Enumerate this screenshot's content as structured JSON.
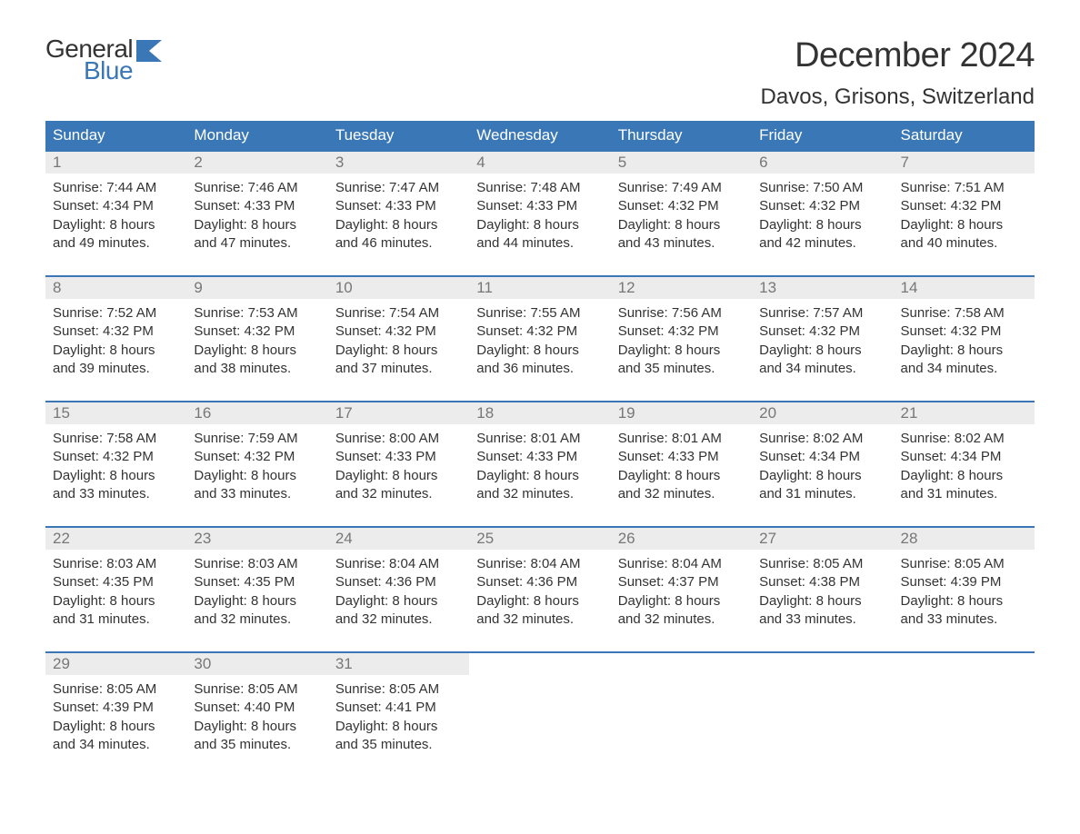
{
  "logo": {
    "word1": "General",
    "word2": "Blue"
  },
  "title": "December 2024",
  "location": "Davos, Grisons, Switzerland",
  "colors": {
    "brand_blue": "#3a77b7",
    "header_bg": "#3a77b7",
    "header_text": "#ffffff",
    "daynum_bg": "#ececec",
    "daynum_text": "#777777",
    "body_text": "#333333",
    "page_bg": "#ffffff"
  },
  "typography": {
    "title_fontsize": 38,
    "location_fontsize": 24,
    "dow_fontsize": 17,
    "daynum_fontsize": 17,
    "detail_fontsize": 15,
    "font_family": "Arial"
  },
  "day_headers": [
    "Sunday",
    "Monday",
    "Tuesday",
    "Wednesday",
    "Thursday",
    "Friday",
    "Saturday"
  ],
  "weeks": [
    [
      {
        "n": "1",
        "sunrise": "Sunrise: 7:44 AM",
        "sunset": "Sunset: 4:34 PM",
        "dl1": "Daylight: 8 hours",
        "dl2": "and 49 minutes."
      },
      {
        "n": "2",
        "sunrise": "Sunrise: 7:46 AM",
        "sunset": "Sunset: 4:33 PM",
        "dl1": "Daylight: 8 hours",
        "dl2": "and 47 minutes."
      },
      {
        "n": "3",
        "sunrise": "Sunrise: 7:47 AM",
        "sunset": "Sunset: 4:33 PM",
        "dl1": "Daylight: 8 hours",
        "dl2": "and 46 minutes."
      },
      {
        "n": "4",
        "sunrise": "Sunrise: 7:48 AM",
        "sunset": "Sunset: 4:33 PM",
        "dl1": "Daylight: 8 hours",
        "dl2": "and 44 minutes."
      },
      {
        "n": "5",
        "sunrise": "Sunrise: 7:49 AM",
        "sunset": "Sunset: 4:32 PM",
        "dl1": "Daylight: 8 hours",
        "dl2": "and 43 minutes."
      },
      {
        "n": "6",
        "sunrise": "Sunrise: 7:50 AM",
        "sunset": "Sunset: 4:32 PM",
        "dl1": "Daylight: 8 hours",
        "dl2": "and 42 minutes."
      },
      {
        "n": "7",
        "sunrise": "Sunrise: 7:51 AM",
        "sunset": "Sunset: 4:32 PM",
        "dl1": "Daylight: 8 hours",
        "dl2": "and 40 minutes."
      }
    ],
    [
      {
        "n": "8",
        "sunrise": "Sunrise: 7:52 AM",
        "sunset": "Sunset: 4:32 PM",
        "dl1": "Daylight: 8 hours",
        "dl2": "and 39 minutes."
      },
      {
        "n": "9",
        "sunrise": "Sunrise: 7:53 AM",
        "sunset": "Sunset: 4:32 PM",
        "dl1": "Daylight: 8 hours",
        "dl2": "and 38 minutes."
      },
      {
        "n": "10",
        "sunrise": "Sunrise: 7:54 AM",
        "sunset": "Sunset: 4:32 PM",
        "dl1": "Daylight: 8 hours",
        "dl2": "and 37 minutes."
      },
      {
        "n": "11",
        "sunrise": "Sunrise: 7:55 AM",
        "sunset": "Sunset: 4:32 PM",
        "dl1": "Daylight: 8 hours",
        "dl2": "and 36 minutes."
      },
      {
        "n": "12",
        "sunrise": "Sunrise: 7:56 AM",
        "sunset": "Sunset: 4:32 PM",
        "dl1": "Daylight: 8 hours",
        "dl2": "and 35 minutes."
      },
      {
        "n": "13",
        "sunrise": "Sunrise: 7:57 AM",
        "sunset": "Sunset: 4:32 PM",
        "dl1": "Daylight: 8 hours",
        "dl2": "and 34 minutes."
      },
      {
        "n": "14",
        "sunrise": "Sunrise: 7:58 AM",
        "sunset": "Sunset: 4:32 PM",
        "dl1": "Daylight: 8 hours",
        "dl2": "and 34 minutes."
      }
    ],
    [
      {
        "n": "15",
        "sunrise": "Sunrise: 7:58 AM",
        "sunset": "Sunset: 4:32 PM",
        "dl1": "Daylight: 8 hours",
        "dl2": "and 33 minutes."
      },
      {
        "n": "16",
        "sunrise": "Sunrise: 7:59 AM",
        "sunset": "Sunset: 4:32 PM",
        "dl1": "Daylight: 8 hours",
        "dl2": "and 33 minutes."
      },
      {
        "n": "17",
        "sunrise": "Sunrise: 8:00 AM",
        "sunset": "Sunset: 4:33 PM",
        "dl1": "Daylight: 8 hours",
        "dl2": "and 32 minutes."
      },
      {
        "n": "18",
        "sunrise": "Sunrise: 8:01 AM",
        "sunset": "Sunset: 4:33 PM",
        "dl1": "Daylight: 8 hours",
        "dl2": "and 32 minutes."
      },
      {
        "n": "19",
        "sunrise": "Sunrise: 8:01 AM",
        "sunset": "Sunset: 4:33 PM",
        "dl1": "Daylight: 8 hours",
        "dl2": "and 32 minutes."
      },
      {
        "n": "20",
        "sunrise": "Sunrise: 8:02 AM",
        "sunset": "Sunset: 4:34 PM",
        "dl1": "Daylight: 8 hours",
        "dl2": "and 31 minutes."
      },
      {
        "n": "21",
        "sunrise": "Sunrise: 8:02 AM",
        "sunset": "Sunset: 4:34 PM",
        "dl1": "Daylight: 8 hours",
        "dl2": "and 31 minutes."
      }
    ],
    [
      {
        "n": "22",
        "sunrise": "Sunrise: 8:03 AM",
        "sunset": "Sunset: 4:35 PM",
        "dl1": "Daylight: 8 hours",
        "dl2": "and 31 minutes."
      },
      {
        "n": "23",
        "sunrise": "Sunrise: 8:03 AM",
        "sunset": "Sunset: 4:35 PM",
        "dl1": "Daylight: 8 hours",
        "dl2": "and 32 minutes."
      },
      {
        "n": "24",
        "sunrise": "Sunrise: 8:04 AM",
        "sunset": "Sunset: 4:36 PM",
        "dl1": "Daylight: 8 hours",
        "dl2": "and 32 minutes."
      },
      {
        "n": "25",
        "sunrise": "Sunrise: 8:04 AM",
        "sunset": "Sunset: 4:36 PM",
        "dl1": "Daylight: 8 hours",
        "dl2": "and 32 minutes."
      },
      {
        "n": "26",
        "sunrise": "Sunrise: 8:04 AM",
        "sunset": "Sunset: 4:37 PM",
        "dl1": "Daylight: 8 hours",
        "dl2": "and 32 minutes."
      },
      {
        "n": "27",
        "sunrise": "Sunrise: 8:05 AM",
        "sunset": "Sunset: 4:38 PM",
        "dl1": "Daylight: 8 hours",
        "dl2": "and 33 minutes."
      },
      {
        "n": "28",
        "sunrise": "Sunrise: 8:05 AM",
        "sunset": "Sunset: 4:39 PM",
        "dl1": "Daylight: 8 hours",
        "dl2": "and 33 minutes."
      }
    ],
    [
      {
        "n": "29",
        "sunrise": "Sunrise: 8:05 AM",
        "sunset": "Sunset: 4:39 PM",
        "dl1": "Daylight: 8 hours",
        "dl2": "and 34 minutes."
      },
      {
        "n": "30",
        "sunrise": "Sunrise: 8:05 AM",
        "sunset": "Sunset: 4:40 PM",
        "dl1": "Daylight: 8 hours",
        "dl2": "and 35 minutes."
      },
      {
        "n": "31",
        "sunrise": "Sunrise: 8:05 AM",
        "sunset": "Sunset: 4:41 PM",
        "dl1": "Daylight: 8 hours",
        "dl2": "and 35 minutes."
      },
      null,
      null,
      null,
      null
    ]
  ]
}
